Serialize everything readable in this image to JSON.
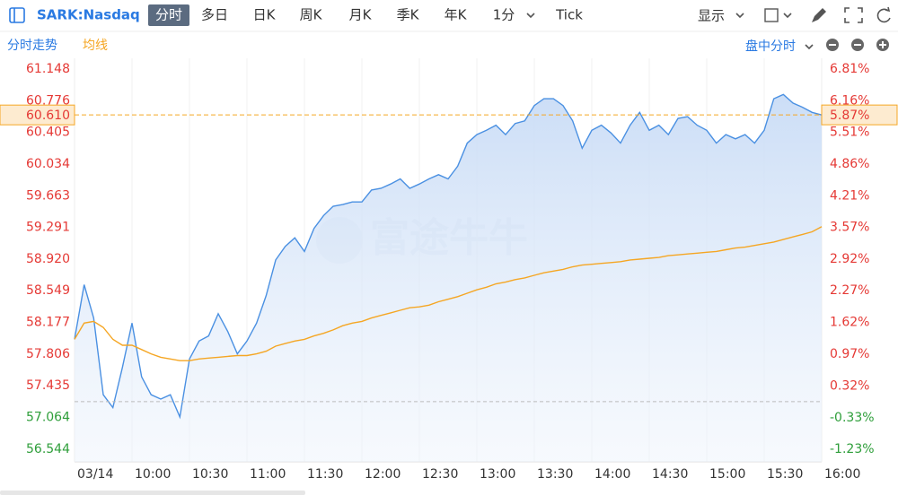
{
  "toolbar": {
    "symbol": "SARK:Nasdaq",
    "tabs": [
      "分时",
      "多日",
      "日K",
      "周K",
      "月K",
      "季K",
      "年K",
      "1分",
      "Tick"
    ],
    "display": "显示"
  },
  "subbar": {
    "mode": "盘中分时"
  },
  "chart_data": {
    "type": "line",
    "watermark": "富途牛牛",
    "categories": [
      "03/14",
      null,
      null,
      null,
      null,
      null,
      "10:00",
      null,
      null,
      null,
      null,
      null,
      "10:30",
      null,
      null,
      null,
      null,
      null,
      "11:00",
      null,
      null,
      null,
      null,
      null,
      "11:30",
      null,
      null,
      null,
      null,
      null,
      "12:00",
      null,
      null,
      null,
      null,
      null,
      "12:30",
      null,
      null,
      null,
      null,
      null,
      "13:00",
      null,
      null,
      null,
      null,
      null,
      "13:30",
      null,
      null,
      null,
      null,
      null,
      "14:00",
      null,
      null,
      null,
      null,
      null,
      "14:30",
      null,
      null,
      null,
      null,
      null,
      "15:00",
      null,
      null,
      null,
      null,
      null,
      "15:30",
      null,
      null,
      null,
      null,
      null,
      "16:00"
    ],
    "series": [
      {
        "name": "分时走势",
        "color": "#4a90e2",
        "values": [
          57.98,
          58.62,
          58.23,
          57.33,
          57.18,
          57.65,
          58.17,
          57.54,
          57.33,
          57.28,
          57.33,
          57.07,
          57.75,
          57.96,
          58.02,
          58.28,
          58.07,
          57.81,
          57.96,
          58.17,
          58.49,
          58.91,
          59.07,
          59.17,
          59.01,
          59.28,
          59.43,
          59.54,
          59.56,
          59.59,
          59.59,
          59.73,
          59.75,
          59.8,
          59.86,
          59.75,
          59.8,
          59.86,
          59.91,
          59.86,
          60.01,
          60.28,
          60.38,
          60.43,
          60.49,
          60.38,
          60.51,
          60.54,
          60.72,
          60.8,
          60.8,
          60.72,
          60.54,
          60.22,
          60.43,
          60.49,
          60.4,
          60.28,
          60.49,
          60.64,
          60.43,
          60.49,
          60.38,
          60.57,
          60.59,
          60.49,
          60.43,
          60.28,
          60.38,
          60.33,
          60.38,
          60.28,
          60.43,
          60.8,
          60.85,
          60.75,
          60.7,
          60.64,
          60.61
        ]
      },
      {
        "name": "均线",
        "color": "#f5a623",
        "values": [
          57.98,
          58.17,
          58.19,
          58.12,
          57.98,
          57.91,
          57.91,
          57.86,
          57.81,
          57.77,
          57.75,
          57.73,
          57.73,
          57.75,
          57.76,
          57.77,
          57.78,
          57.79,
          57.79,
          57.81,
          57.84,
          57.9,
          57.93,
          57.96,
          57.98,
          58.02,
          58.05,
          58.09,
          58.14,
          58.17,
          58.19,
          58.23,
          58.26,
          58.29,
          58.32,
          58.35,
          58.36,
          58.38,
          58.42,
          58.45,
          58.48,
          58.52,
          58.56,
          58.59,
          58.63,
          58.65,
          58.68,
          58.7,
          58.73,
          58.76,
          58.78,
          58.8,
          58.83,
          58.85,
          58.86,
          58.87,
          58.88,
          58.89,
          58.91,
          58.92,
          58.93,
          58.94,
          58.96,
          58.97,
          58.98,
          58.99,
          59.0,
          59.01,
          59.03,
          59.05,
          59.06,
          59.08,
          59.1,
          59.12,
          59.15,
          59.18,
          59.21,
          59.24,
          59.3
        ]
      }
    ],
    "ylim": [
      56.544,
      61.274
    ],
    "yticks": [
      61.148,
      60.776,
      60.405,
      60.034,
      59.663,
      59.291,
      {
        "value": 58.92,
        "label": "58.920"
      },
      58.549,
      58.177,
      57.806,
      57.435,
      57.064,
      56.544
    ],
    "y2lim": [
      -1.233,
      7.029
    ],
    "y2ticks": [
      {
        "value": 6.81,
        "label": "6.81%"
      },
      {
        "value": 6.16,
        "label": "6.16%"
      },
      {
        "value": 5.51,
        "label": "5.51%"
      },
      {
        "value": 4.86,
        "label": "4.86%"
      },
      {
        "value": 4.21,
        "label": "4.21%"
      },
      {
        "value": 3.57,
        "label": "3.57%"
      },
      {
        "value": 2.92,
        "label": "2.92%"
      },
      {
        "value": 2.27,
        "label": "2.27%"
      },
      {
        "value": 1.62,
        "label": "1.62%"
      },
      {
        "value": 0.97,
        "label": "0.97%"
      },
      {
        "value": 0.32,
        "label": "0.32%"
      },
      {
        "value": -0.33,
        "label": "-0.33%"
      },
      {
        "value": -1.23,
        "label": "-1.23%"
      }
    ],
    "reference_price": 57.25,
    "current_price": {
      "value": 60.61,
      "label": "60.610"
    },
    "current_change": {
      "value": 5.87,
      "label": "5.87%"
    },
    "grid": true,
    "up_color": "#e53935",
    "down_color": "#2e9e3a"
  }
}
